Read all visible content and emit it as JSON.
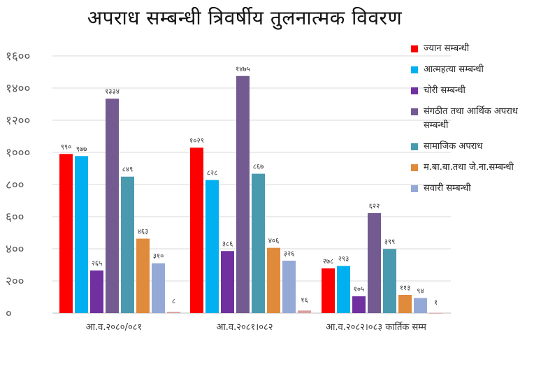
{
  "chart_data": {
    "type": "bar",
    "title": "अपराध सम्बन्धी त्रिवर्षीय तुलनात्मक विवरण",
    "xlabel": "",
    "ylabel": "",
    "ylim": [
      0,
      1600
    ],
    "yticks": [
      0,
      200,
      400,
      600,
      800,
      1000,
      1200,
      1400,
      1600
    ],
    "ytick_labels": [
      "०",
      "२००",
      "४००",
      "६००",
      "८००",
      "१०००",
      "१२००",
      "१४००",
      "१६००"
    ],
    "grid": true,
    "legend_position": "right",
    "categories": [
      "आ.व.२०८०/०८१",
      "आ.व.२०८१।०८२",
      "आ.व.२०८२।०८३ कार्तिक सम्म"
    ],
    "series": [
      {
        "name": "ज्यान सम्बन्धी",
        "color": "#ff0000",
        "values": [
          990,
          1029,
          278
        ],
        "labels": [
          "९९०",
          "१०२९",
          "२७८"
        ]
      },
      {
        "name": "आत्महत्या सम्बन्धी",
        "color": "#00b0f0",
        "values": [
          977,
          828,
          293
        ],
        "labels": [
          "९७७",
          "८२८",
          "२९३"
        ]
      },
      {
        "name": "चोरी सम्बन्धी",
        "color": "#7030a0",
        "values": [
          265,
          386,
          105
        ],
        "labels": [
          "२६५",
          "३८६",
          "१०५"
        ]
      },
      {
        "name": "संगठीत तथा आर्थिक अपराध सम्बन्धी",
        "color": "#735a91",
        "values": [
          1334,
          1475,
          622
        ],
        "labels": [
          "१३३४",
          "१४७५",
          "६२२"
        ]
      },
      {
        "name": "सामाजिक अपराध",
        "color": "#4a9aaf",
        "values": [
          849,
          867,
          399
        ],
        "labels": [
          "८४९",
          "८६७",
          "३९९"
        ]
      },
      {
        "name": "म.बा.बा.तथा जे.ना.सम्बन्धी",
        "color": "#e08a3c",
        "values": [
          463,
          406,
          113
        ],
        "labels": [
          "४६३",
          "४०६",
          "११३"
        ]
      },
      {
        "name": "सवारी सम्बन्धी",
        "color": "#95a9d6",
        "values": [
          310,
          326,
          94
        ],
        "labels": [
          "३१०",
          "३२६",
          "९४"
        ]
      }
    ],
    "extra_labels": [
      {
        "category_index": 0,
        "label": "८",
        "value": 8,
        "color": "#d9a0a0"
      },
      {
        "category_index": 1,
        "label": "१६",
        "value": 16,
        "color": "#d9a0a0"
      },
      {
        "category_index": 2,
        "label": "१",
        "value": 1,
        "color": "#d9a0a0"
      }
    ]
  }
}
